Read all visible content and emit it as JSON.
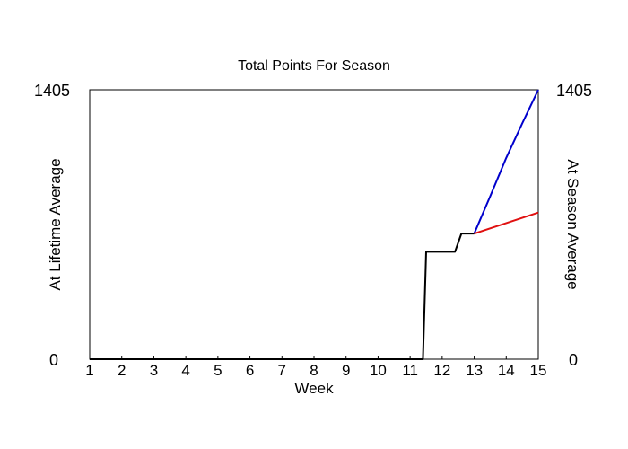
{
  "chart_data": {
    "type": "line",
    "title": "Total Points For Season",
    "xlabel": "Week",
    "ylabel_left": "At Lifetime Average",
    "ylabel_right": "At Season Average",
    "x_ticks": [
      "1",
      "2",
      "3",
      "4",
      "5",
      "6",
      "7",
      "8",
      "9",
      "10",
      "11",
      "12",
      "13",
      "14",
      "15"
    ],
    "xlim": [
      1,
      15
    ],
    "ylim": [
      0,
      1405
    ],
    "y_tick_labels": [
      "0",
      "1405"
    ],
    "grid": false,
    "colors": {
      "actual": "#000000",
      "lifetime": "#0000cc",
      "season": "#e01010",
      "left_label": "#0000cc",
      "right_label": "#e01010"
    },
    "series": [
      {
        "key": "actual",
        "points": [
          [
            1,
            0
          ],
          [
            2,
            0
          ],
          [
            3,
            0
          ],
          [
            4,
            0
          ],
          [
            5,
            0
          ],
          [
            6,
            0
          ],
          [
            7,
            0
          ],
          [
            8,
            0
          ],
          [
            9,
            0
          ],
          [
            10,
            0
          ],
          [
            11,
            0
          ],
          [
            11.4,
            0
          ],
          [
            11.5,
            560
          ],
          [
            12,
            560
          ],
          [
            12.4,
            560
          ],
          [
            12.6,
            655
          ],
          [
            13,
            655
          ]
        ]
      },
      {
        "key": "lifetime",
        "points": [
          [
            13,
            655
          ],
          [
            13.5,
            850
          ],
          [
            14,
            1050
          ],
          [
            14.5,
            1230
          ],
          [
            15,
            1405
          ]
        ]
      },
      {
        "key": "season",
        "points": [
          [
            13,
            655
          ],
          [
            14,
            710
          ],
          [
            15,
            765
          ]
        ]
      }
    ]
  }
}
